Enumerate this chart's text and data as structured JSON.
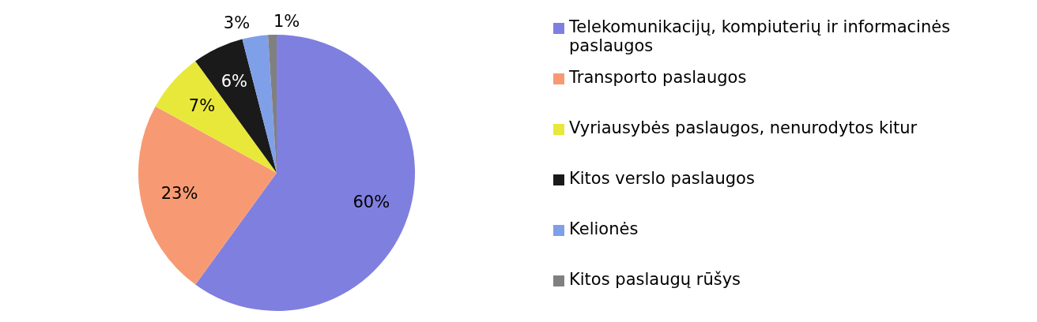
{
  "chart_data": {
    "type": "pie",
    "categories": [
      "Telekomunikacijų, kompiuterių ir informacinės paslaugos",
      "Transporto paslaugos",
      "Vyriausybės paslaugos, nenurodytos kitur",
      "Kitos verslo paslaugos",
      "Kelionės",
      "Kitos paslaugų rūšys"
    ],
    "values": [
      60,
      23,
      7,
      6,
      3,
      1
    ],
    "colors": [
      "#7f7fe0",
      "#f79a73",
      "#e8e83a",
      "#1a1a1a",
      "#7f9fe8",
      "#808080"
    ],
    "value_labels": [
      "60%",
      "23%",
      "7%",
      "6%",
      "3%",
      "1%"
    ],
    "legend": "right"
  }
}
